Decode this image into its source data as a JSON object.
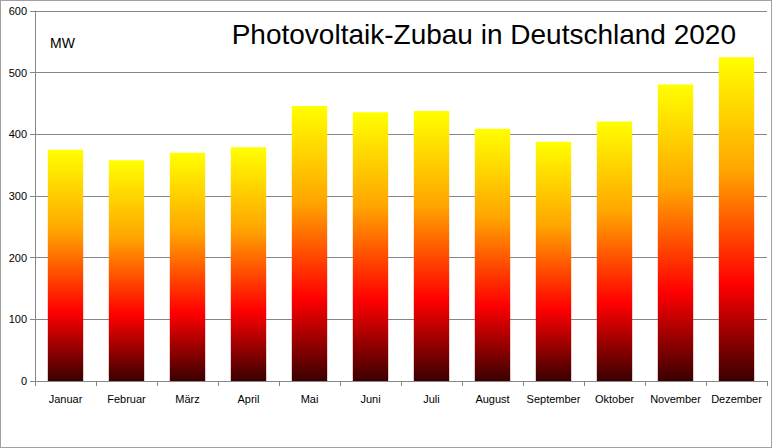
{
  "chart_data": {
    "type": "bar",
    "title": "Photovoltaik-Zubau in Deutschland 2020",
    "ylabel": "MW",
    "categories": [
      "Januar",
      "Februar",
      "März",
      "April",
      "Mai",
      "Juni",
      "Juli",
      "August",
      "September",
      "Oktober",
      "November",
      "Dezember"
    ],
    "values": [
      375,
      358,
      370,
      379,
      446,
      436,
      438,
      409,
      388,
      421,
      481,
      525
    ],
    "ylim": [
      0,
      600
    ],
    "yticks": [
      0,
      100,
      200,
      300,
      400,
      500,
      600
    ],
    "grid": true
  }
}
